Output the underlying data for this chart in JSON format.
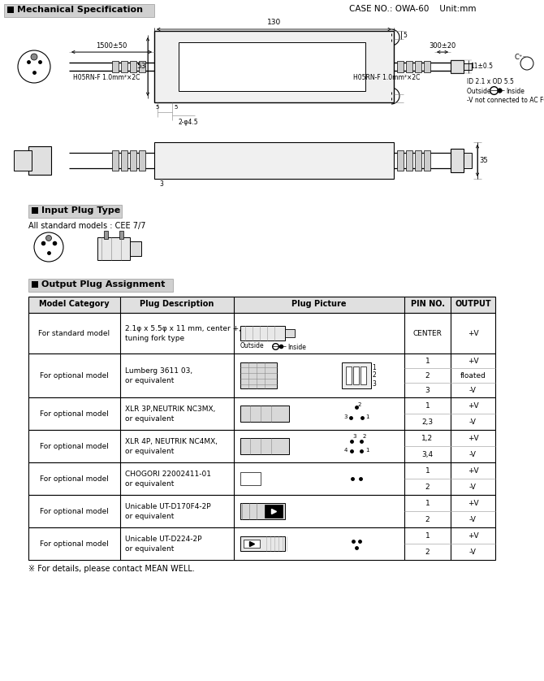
{
  "title_mech": "Mechanical Specification",
  "case_no": "CASE NO.: OWA-60    Unit:mm",
  "title_input": "Input Plug Type",
  "input_models": "All standard models : CEE 7/7",
  "title_output": "Output Plug Assignment",
  "footer": "※ For details, please contact MEAN WELL.",
  "table_headers": [
    "Model Category",
    "Plug Description",
    "Plug Picture",
    "PIN NO.",
    "OUTPUT"
  ],
  "table_rows": [
    {
      "model": "For standard model",
      "desc": "2.1φ x 5.5φ x 11 mm, center +,\ntuning fork type",
      "pin_output": [
        [
          "CENTER",
          "+V"
        ]
      ]
    },
    {
      "model": "For optional model",
      "desc": "Lumberg 3611 03,\nor equivalent",
      "pin_output": [
        [
          "1",
          "+V"
        ],
        [
          "2",
          "floated"
        ],
        [
          "3",
          "-V"
        ]
      ]
    },
    {
      "model": "For optional model",
      "desc": "XLR 3P,NEUTRIK NC3MX,\nor equivalent",
      "pin_output": [
        [
          "1",
          "+V"
        ],
        [
          "2,3",
          "-V"
        ]
      ]
    },
    {
      "model": "For optional model",
      "desc": "XLR 4P, NEUTRIK NC4MX,\nor equivalent",
      "pin_output": [
        [
          "1,2",
          "+V"
        ],
        [
          "3,4",
          "-V"
        ]
      ]
    },
    {
      "model": "For optional model",
      "desc": "CHOGORI 22002411-01\nor equivalent",
      "pin_output": [
        [
          "1",
          "+V"
        ],
        [
          "2",
          "-V"
        ]
      ]
    },
    {
      "model": "For optional model",
      "desc": "Unicable UT-D170F4-2P\nor equivalent",
      "pin_output": [
        [
          "1",
          "+V"
        ],
        [
          "2",
          "-V"
        ]
      ]
    },
    {
      "model": "For optional model",
      "desc": "Unicable UT-D224-2P\nor equivalent",
      "pin_output": [
        [
          "1",
          "+V"
        ],
        [
          "2",
          "-V"
        ]
      ]
    }
  ],
  "bg_color": "#ffffff",
  "section_header_bg": "#d0d0d0"
}
